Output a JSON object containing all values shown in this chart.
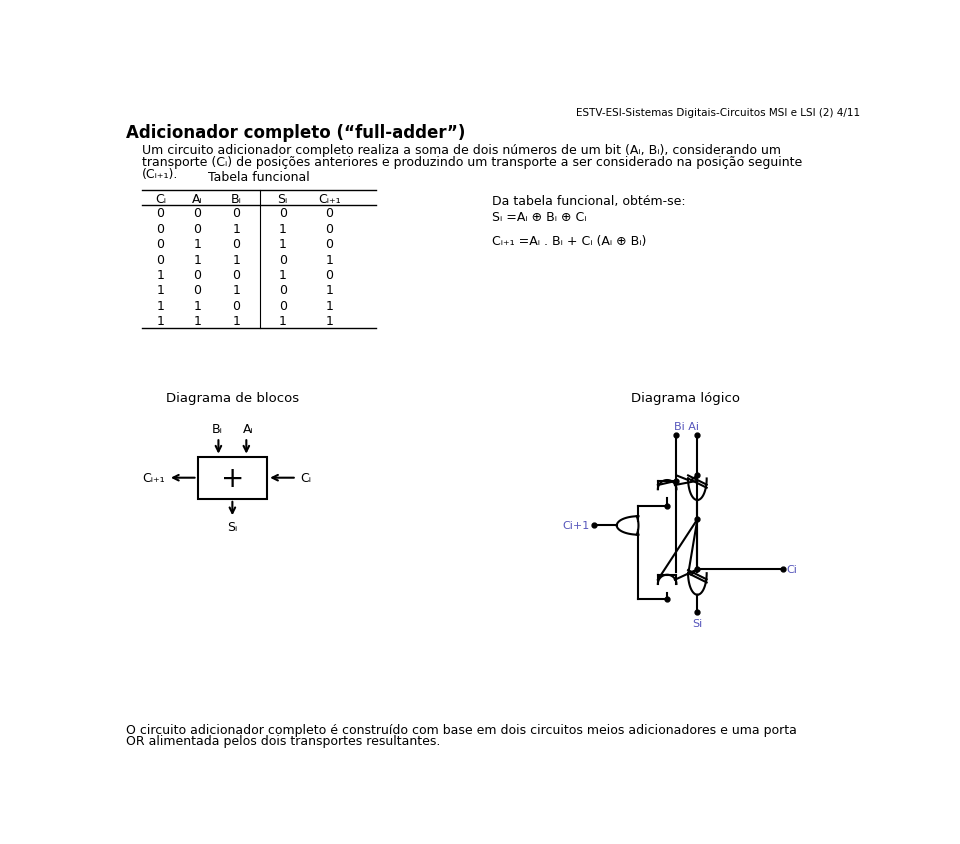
{
  "page_header": "ESTV-ESI-Sistemas Digitais-Circuitos MSI e LSI (2) 4/11",
  "title": "Adicionador completo (“full-adder”)",
  "para_lines": [
    "Um circuito adicionador completo realiza a soma de dois números de um bit (Aᵢ, Bᵢ), considerando um",
    "transporte (Cᵢ) de posições anteriores e produzindo um transporte a ser considerado na posição seguinte",
    "(Cᵢ₊₁)."
  ],
  "table_title": "Tabela funcional",
  "table_headers": [
    "Cᵢ",
    "Aᵢ",
    "Bᵢ",
    "Sᵢ",
    "Cᵢ₊₁"
  ],
  "table_data": [
    [
      0,
      0,
      0,
      0,
      0
    ],
    [
      0,
      0,
      1,
      1,
      0
    ],
    [
      0,
      1,
      0,
      1,
      0
    ],
    [
      0,
      1,
      1,
      0,
      1
    ],
    [
      1,
      0,
      0,
      1,
      0
    ],
    [
      1,
      0,
      1,
      0,
      1
    ],
    [
      1,
      1,
      0,
      0,
      1
    ],
    [
      1,
      1,
      1,
      1,
      1
    ]
  ],
  "right_text_title": "Da tabela funcional, obtém-se:",
  "formula1": "Sᵢ =Aᵢ ⊕ Bᵢ ⊕ Cᵢ",
  "formula2": "Cᵢ₊₁ =Aᵢ . Bᵢ + Cᵢ (Aᵢ ⊕ Bᵢ)",
  "block_title": "Diagrama de blocos",
  "logic_title": "Diagrama lógico",
  "footer_lines": [
    "O circuito adicionador completo é construído com base em dois circuitos meios adicionadores e uma porta",
    "OR alimentada pelos dois transportes resultantes."
  ],
  "text_color": "#000000",
  "bg_color": "#ffffff",
  "blue_color": "#5555bb",
  "font_size_header": 7.5,
  "font_size_title": 12,
  "font_size_body": 9,
  "font_size_table": 9
}
